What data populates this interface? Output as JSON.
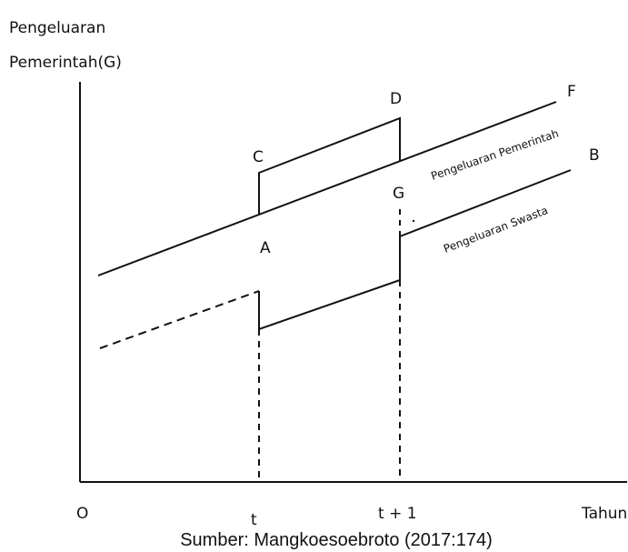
{
  "axis": {
    "y_label_line1": "Pengeluaran",
    "y_label_line2": "Pemerintah(G)",
    "origin": "O",
    "x_label": "Tahun",
    "t": "t",
    "t_plus_1": "t + 1"
  },
  "points": {
    "A": "A",
    "B": "B",
    "C": "C",
    "D": "D",
    "F": "F",
    "G": "G"
  },
  "curves": {
    "government": "Pengeluaran Pemerintah",
    "private": "Pengeluaran Swasta"
  },
  "caption": "Sumber: Mangkoesoebroto (2017:174)"
}
